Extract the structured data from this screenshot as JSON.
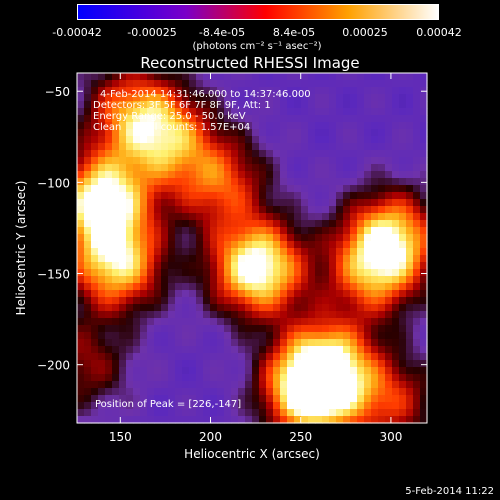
{
  "colorbar": {
    "tick_labels": [
      "-0.00042",
      "-0.00025",
      "-8.4e-05",
      "8.4e-05",
      "0.00025",
      "0.00042"
    ],
    "units_label": "(photons cm⁻² s⁻¹ asec⁻²)",
    "range": [
      -0.00042,
      0.00042
    ],
    "colors": [
      "#0000ff",
      "#7a00c8",
      "#ff0000",
      "#ffa000",
      "#ffffff"
    ]
  },
  "chart_data": {
    "type": "heatmap",
    "title": "Reconstructed RHESSI Image",
    "xlabel": "Heliocentric X (arcsec)",
    "ylabel": "Heliocentric Y (arcsec)",
    "xlim": [
      126,
      320
    ],
    "ylim": [
      -232,
      -40
    ],
    "x_ticks": [
      150,
      200,
      250,
      300
    ],
    "y_ticks": [
      -50,
      -100,
      -150,
      -200
    ],
    "peak": [
      226,
      -147
    ],
    "sources": [
      {
        "x": 140,
        "y": -110,
        "intensity": 0.95
      },
      {
        "x": 148,
        "y": -145,
        "intensity": 0.8
      },
      {
        "x": 175,
        "y": -75,
        "intensity": 0.65
      },
      {
        "x": 226,
        "y": -147,
        "intensity": 1.0
      },
      {
        "x": 205,
        "y": -100,
        "intensity": 0.55
      },
      {
        "x": 255,
        "y": -215,
        "intensity": 0.9
      },
      {
        "x": 265,
        "y": -200,
        "intensity": 0.7
      },
      {
        "x": 300,
        "y": -130,
        "intensity": 0.75
      },
      {
        "x": 290,
        "y": -150,
        "intensity": 0.55
      },
      {
        "x": 300,
        "y": -220,
        "intensity": 0.45
      },
      {
        "x": 155,
        "y": -60,
        "intensity": 0.5
      },
      {
        "x": 130,
        "y": -200,
        "intensity": 0.35
      }
    ],
    "annotations": [
      "4-Feb-2014 14:31:46.000 to 14:37:46.000",
      "Detectors: 3F 5F 6F 7F 8F 9F, Att: 1",
      "Energy Range: 25.0 - 50.0 keV",
      "Clean    Total counts: 1.57E+04",
      "Position of Peak = [226,-147]"
    ]
  },
  "footer": {
    "timestamp": "5-Feb-2014 11:22"
  }
}
